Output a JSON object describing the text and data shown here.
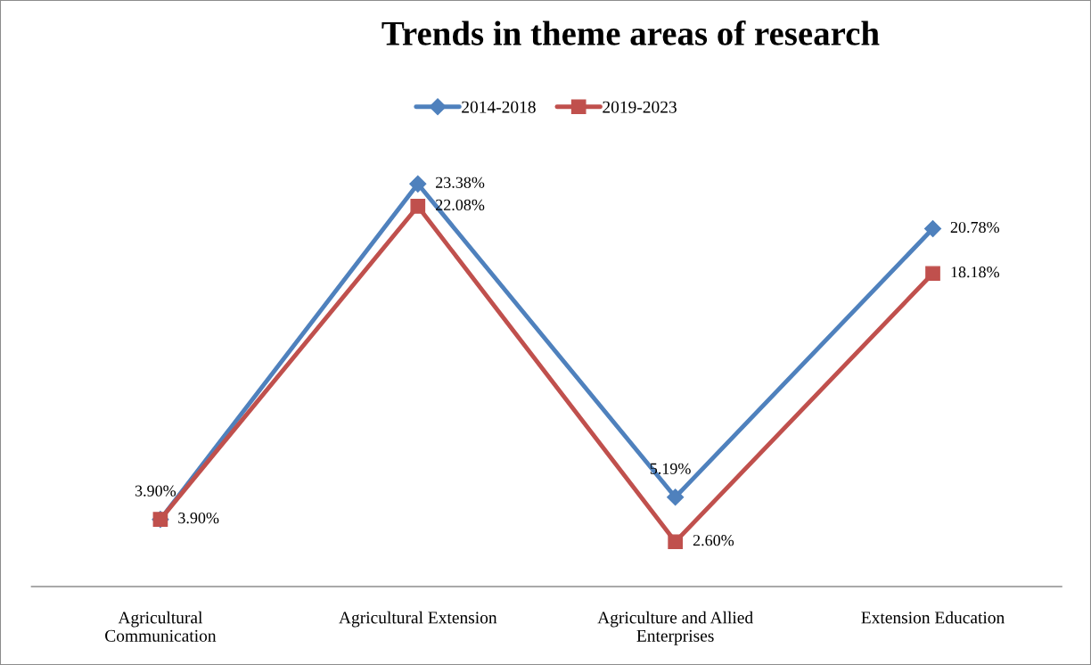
{
  "chart_data": {
    "type": "line",
    "title": "Trends in theme areas of research",
    "categories": [
      "Agricultural Communication",
      "Agricultural Extension",
      "Agriculture and Allied Enterprises",
      "Extension Education"
    ],
    "series": [
      {
        "name": "2014-2018",
        "color": "#4f81bd",
        "marker": "diamond",
        "values": [
          3.9,
          23.38,
          5.19,
          20.78
        ],
        "value_labels": [
          "3.90%",
          "23.38%",
          "5.19%",
          "20.78%"
        ]
      },
      {
        "name": "2019-2023",
        "color": "#c0504d",
        "marker": "square",
        "values": [
          3.9,
          22.08,
          2.6,
          18.18
        ],
        "value_labels": [
          "3.90%",
          "22.08%",
          "2.60%",
          "18.18%"
        ]
      }
    ],
    "legend": "top",
    "grid": false,
    "line_style": "solid"
  }
}
